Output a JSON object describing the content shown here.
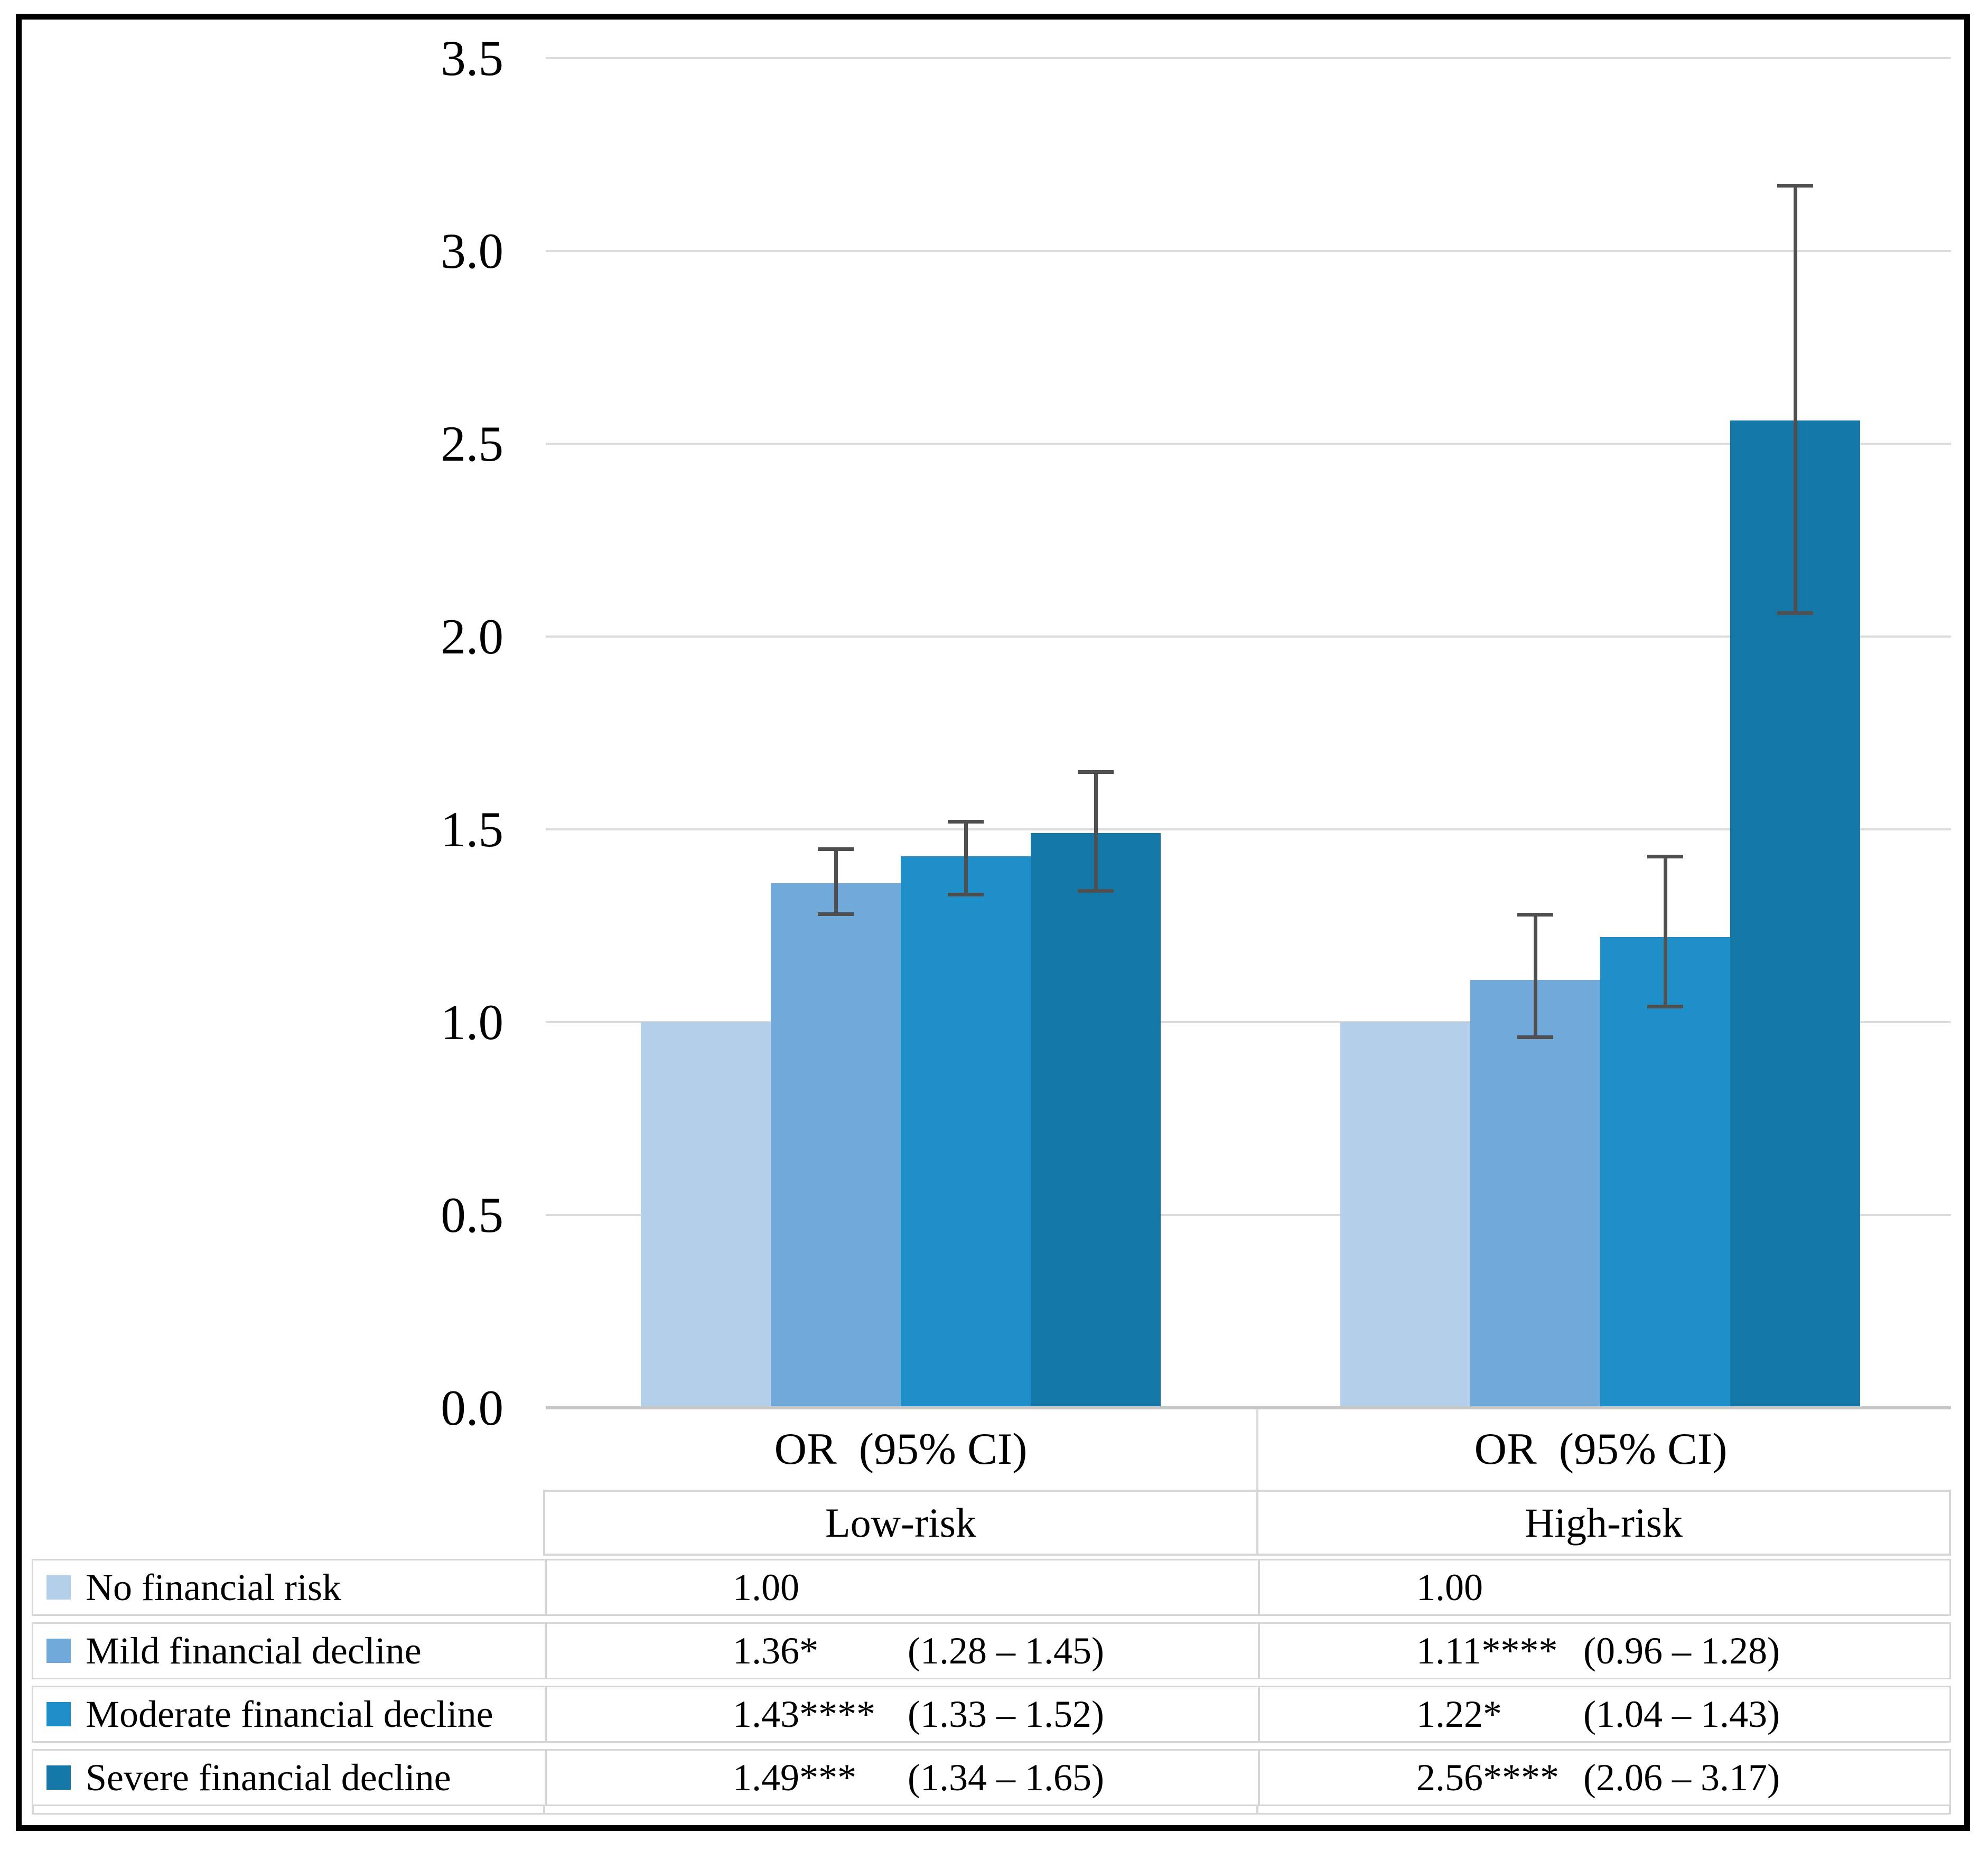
{
  "figure": {
    "kind": "grouped bar chart with 95% CI error bars and data table legend"
  },
  "colors": {
    "series_1": "#b4cfe9",
    "series_2": "#70a9da",
    "series_3": "#1e8fc8",
    "series_4": "#1577a8",
    "error_bar": "#4f4f4f",
    "gridline": "#dcdcdc",
    "axis_line": "#c6c6c6",
    "table_border": "#d6d6d6",
    "frame_border": "#000000"
  },
  "axis_band": {
    "or": "OR",
    "ci": "(95% CI)"
  },
  "y_axis": {
    "tick_labels": [
      "3.5",
      "3.0",
      "2.5",
      "2.0",
      "1.5",
      "1.0",
      "0.5",
      "0.0"
    ]
  },
  "chart_data": {
    "type": "bar",
    "title": "",
    "xlabel": "",
    "ylabel": "",
    "ylim": [
      0,
      3.5
    ],
    "ytick_step": 0.5,
    "ytick_labels": [
      "3.5",
      "3.0",
      "2.5",
      "2.0",
      "1.5",
      "1.0",
      "0.5",
      "0.0"
    ],
    "grid": true,
    "legend_position": "bottom-table",
    "groups": [
      "Low-risk",
      "High-risk"
    ],
    "group_axis_label": "OR (95% CI)",
    "series": [
      {
        "name": "No financial risk",
        "color": "#b4cfe9",
        "values": [
          1.0,
          1.0
        ],
        "ci": [
          null,
          null
        ]
      },
      {
        "name": "Mild financial decline",
        "color": "#70a9da",
        "values": [
          1.36,
          1.11
        ],
        "ci": [
          [
            1.28,
            1.45
          ],
          [
            0.96,
            1.28
          ]
        ]
      },
      {
        "name": "Moderate financial decline",
        "color": "#1e8fc8",
        "values": [
          1.43,
          1.22
        ],
        "ci": [
          [
            1.33,
            1.52
          ],
          [
            1.04,
            1.43
          ]
        ]
      },
      {
        "name": "Severe financial decline",
        "color": "#1577a8",
        "values": [
          1.49,
          2.56
        ],
        "ci": [
          [
            1.34,
            1.65
          ],
          [
            2.06,
            3.17
          ]
        ]
      }
    ]
  },
  "table": {
    "headers": {
      "low": "Low-risk",
      "high": "High-risk"
    },
    "rows": [
      {
        "label": "No financial risk",
        "low_or": "1.00",
        "low_ci": "",
        "high_or": "1.00",
        "high_ci": ""
      },
      {
        "label": "Mild financial decline",
        "low_or": "1.36*",
        "low_ci": "(1.28 – 1.45)",
        "high_or": "1.11****",
        "high_ci": "(0.96 – 1.28)"
      },
      {
        "label": "Moderate financial decline",
        "low_or": "1.43****",
        "low_ci": "(1.33 – 1.52)",
        "high_or": "1.22*",
        "high_ci": "(1.04 – 1.43)"
      },
      {
        "label": "Severe financial decline",
        "low_or": "1.49***",
        "low_ci": "(1.34 – 1.65)",
        "high_or": "2.56****",
        "high_ci": "(2.06 – 3.17)"
      }
    ]
  }
}
